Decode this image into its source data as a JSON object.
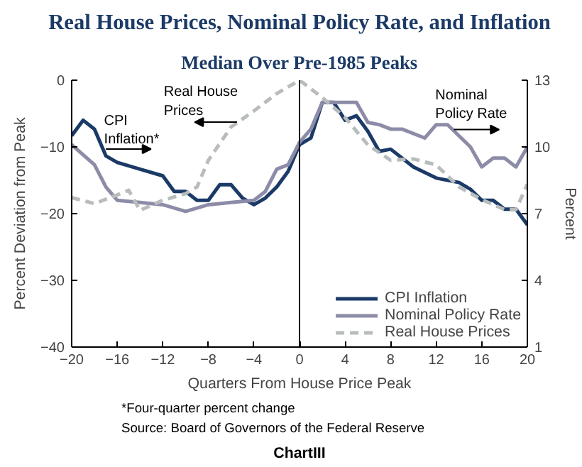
{
  "chart_data": {
    "type": "line",
    "title": "Real House Prices, Nominal Policy Rate, and Inflation",
    "subtitle": "Median Over Pre-1985 Peaks",
    "xlabel": "Quarters From House Price Peak",
    "ylabel": "Percent Deviation from Peak",
    "y2label": "Percent",
    "xlim": [
      -20,
      20
    ],
    "xticks": [
      -20,
      -16,
      -12,
      -8,
      -4,
      0,
      4,
      8,
      12,
      16,
      20
    ],
    "ylim": [
      -40,
      0
    ],
    "yticks": [
      -40,
      -30,
      -20,
      -10,
      0
    ],
    "y2lim": [
      1,
      13
    ],
    "y2ticks": [
      1,
      4,
      7,
      10,
      13
    ],
    "series": [
      {
        "name": "CPI Inflation",
        "color": "#1b3a67",
        "axis": "y2",
        "line_style": "solid",
        "x": [
          -20,
          -19,
          -18,
          -17,
          -16,
          -14,
          -12,
          -11,
          -10,
          -9,
          -8,
          -7,
          -6,
          -5,
          -4,
          -3,
          -2,
          -1,
          0,
          1,
          2,
          3,
          4,
          5,
          6,
          7,
          8,
          10,
          12,
          14,
          15,
          16,
          17,
          18,
          19,
          20
        ],
        "values": [
          10.5,
          11.2,
          10.8,
          9.6,
          9.3,
          9.0,
          8.7,
          8.0,
          8.0,
          7.6,
          7.6,
          8.3,
          8.3,
          7.7,
          7.4,
          7.7,
          8.2,
          8.9,
          10.1,
          10.4,
          12.0,
          12.0,
          11.2,
          11.4,
          10.7,
          9.8,
          9.9,
          9.1,
          8.6,
          8.4,
          8.1,
          7.6,
          7.6,
          7.2,
          7.2,
          6.5
        ]
      },
      {
        "name": "Nominal Policy Rate",
        "color": "#8c8ca8",
        "axis": "y2",
        "line_style": "solid",
        "x": [
          -20,
          -18,
          -17,
          -16,
          -14,
          -12,
          -10,
          -8,
          -6,
          -4,
          -3,
          -2,
          -1,
          0,
          1,
          2,
          3,
          4,
          5,
          6,
          7,
          8,
          9,
          11,
          12,
          13,
          15,
          16,
          17,
          18,
          19,
          20
        ],
        "values": [
          10.1,
          9.2,
          8.2,
          7.6,
          7.5,
          7.4,
          7.1,
          7.4,
          7.5,
          7.6,
          8.0,
          9.0,
          9.2,
          10.2,
          10.8,
          12.0,
          12.0,
          12.0,
          12.0,
          11.1,
          11.0,
          10.8,
          10.8,
          10.4,
          11.0,
          11.0,
          10.0,
          9.1,
          9.5,
          9.5,
          9.1,
          10.0
        ]
      },
      {
        "name": "Real House Prices",
        "color": "#b8bcbc",
        "line_style": "dashed",
        "x": [
          -20,
          -18,
          -16,
          -15,
          -14,
          -12,
          -10,
          -9,
          -8,
          -6,
          -4,
          -2,
          0,
          2,
          4,
          6,
          8,
          10,
          12,
          14,
          16,
          18,
          19,
          20
        ],
        "values": [
          -17.6,
          -18.5,
          -17.2,
          -16.5,
          -19.5,
          -18.0,
          -17.0,
          -16.0,
          -12.0,
          -7.0,
          -4.6,
          -2.0,
          0,
          -2.6,
          -5.6,
          -9.7,
          -12.0,
          -11.8,
          -12.7,
          -16.0,
          -17.9,
          -19.4,
          -19.4,
          -15.6
        ]
      }
    ],
    "ref_lines": [
      {
        "axis": "x",
        "value": 0,
        "color": "#000000",
        "line_style": "solid"
      }
    ],
    "grid": false,
    "legend": "bottom right",
    "marker": "none",
    "annotations": [
      "CPI\nInflation*",
      "Nominal\nPolicy Rate",
      "Real House\n       Prices",
      "*Four-quarter percent change",
      "Source: Board of Governors of the Federal Reserve",
      "ChartIII"
    ]
  }
}
